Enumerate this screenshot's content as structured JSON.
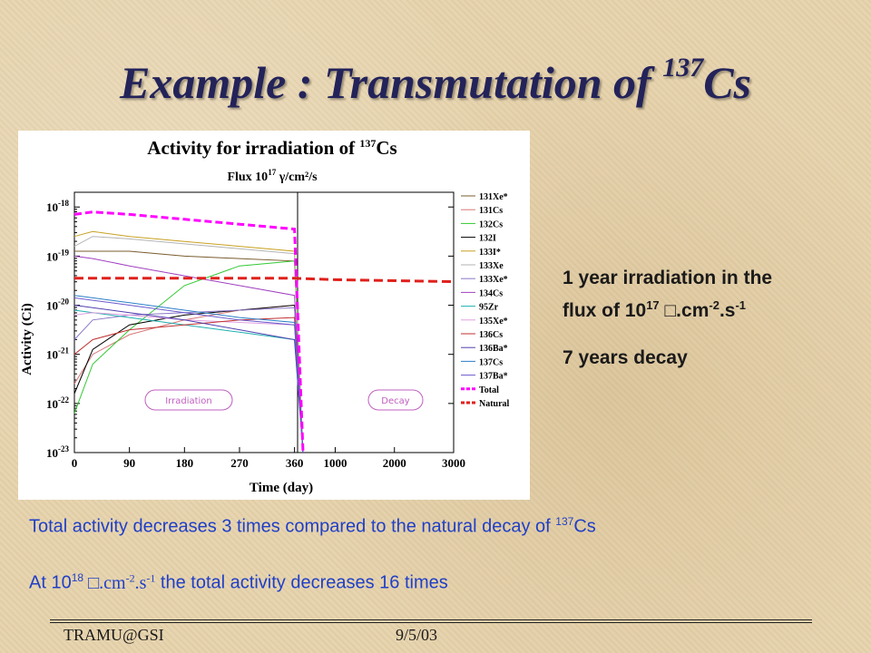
{
  "slide": {
    "title_main": "Example : Transmutation of ",
    "title_sup": "137",
    "title_end": "Cs"
  },
  "info": {
    "line1": "1 year irradiation in the",
    "line2_pre": "flux of 10",
    "line2_sup1": "17",
    "line2_mid": " □.cm",
    "line2_sup2": "-2",
    "line2_dot": ".s",
    "line2_sup3": "-1",
    "line3": "7 years decay"
  },
  "notes": {
    "n1_pre": "Total activity decreases 3 times compared to the natural decay of ",
    "n1_sup": "137",
    "n1_post": "Cs",
    "n2_pre": "At 10",
    "n2_sup1": "18",
    "n2_flux": " □.cm",
    "n2_sup2": "-2",
    "n2_s": ".s",
    "n2_sup3": "-1",
    "n2_post": "  the total activity decreases  16 times"
  },
  "footer": {
    "left": "TRAMU@GSI",
    "right": "9/5/03"
  },
  "chart_data": {
    "type": "line",
    "title_pre": "Activity for irradiation of ",
    "title_sup": "137",
    "title_post": "Cs",
    "subtitle": "Flux 10",
    "subtitle_sup": "17",
    "subtitle_post": " γ/cm²/s",
    "xlabel": "Time (day)",
    "ylabel": "Activity (Ci)",
    "y_scale": "log",
    "ylim_exp": [
      -23,
      -17.7
    ],
    "y_ticks": [
      {
        "exp": -18,
        "label": "10",
        "sup": "-18"
      },
      {
        "exp": -19,
        "label": "10",
        "sup": "-19"
      },
      {
        "exp": -20,
        "label": "10",
        "sup": "-20"
      },
      {
        "exp": -21,
        "label": "10",
        "sup": "-21"
      },
      {
        "exp": -22,
        "label": "10",
        "sup": "-22"
      },
      {
        "exp": -23,
        "label": "10",
        "sup": "-23"
      }
    ],
    "x_ticks_irradiation": [
      "0",
      "90",
      "180",
      "270",
      "360"
    ],
    "x_ticks_decay": [
      "1000",
      "2000",
      "3000"
    ],
    "region_labels": [
      "Irradiation",
      "Decay"
    ],
    "x_segments": [
      {
        "from": 0,
        "to": 365,
        "unit": "day"
      },
      {
        "from": 365,
        "to": 3000,
        "unit": "day"
      }
    ],
    "series": [
      {
        "name": "131Xe*",
        "color": "#7a5c2e",
        "x": [
          0,
          30,
          90,
          180,
          270,
          360
        ],
        "y_exp": [
          -18.9,
          -18.9,
          -18.9,
          -19.0,
          -19.05,
          -19.1
        ]
      },
      {
        "name": "131Cs",
        "color": "#d87878",
        "x": [
          0,
          30,
          90,
          180,
          270,
          360
        ],
        "y_exp": [
          -21.6,
          -21.0,
          -20.6,
          -20.3,
          -20.1,
          -20.0
        ]
      },
      {
        "name": "132Cs",
        "color": "#32c832",
        "x": [
          0,
          30,
          90,
          180,
          270,
          360
        ],
        "y_exp": [
          -22.2,
          -21.2,
          -20.5,
          -19.6,
          -19.2,
          -19.1
        ]
      },
      {
        "name": "132I",
        "color": "#000000",
        "x": [
          0,
          30,
          90,
          180,
          270,
          360
        ],
        "y_exp": [
          -21.8,
          -20.9,
          -20.4,
          -20.2,
          -20.1,
          -20.0
        ]
      },
      {
        "name": "133I*",
        "color": "#c8a020",
        "x": [
          0,
          30,
          90,
          180,
          270,
          360
        ],
        "y_exp": [
          -18.6,
          -18.5,
          -18.6,
          -18.7,
          -18.8,
          -18.9
        ]
      },
      {
        "name": "133Xe",
        "color": "#b3b3b3",
        "x": [
          0,
          30,
          90,
          180,
          270,
          360
        ],
        "y_exp": [
          -18.8,
          -18.6,
          -18.65,
          -18.75,
          -18.85,
          -18.95
        ]
      },
      {
        "name": "133Xe*",
        "color": "#8c78c8",
        "x": [
          0,
          30,
          90,
          180,
          270,
          360
        ],
        "y_exp": [
          -20.7,
          -20.3,
          -20.2,
          -20.15,
          -20.1,
          -20.05
        ]
      },
      {
        "name": "134Cs",
        "color": "#a040c0",
        "x": [
          0,
          30,
          90,
          180,
          270,
          360
        ],
        "y_exp": [
          -19.0,
          -19.05,
          -19.2,
          -19.4,
          -19.6,
          -19.8
        ]
      },
      {
        "name": "95Zr",
        "color": "#20b0b0",
        "x": [
          0,
          30,
          90,
          180,
          270,
          360
        ],
        "y_exp": [
          -20.1,
          -20.15,
          -20.25,
          -20.4,
          -20.55,
          -20.7
        ]
      },
      {
        "name": "135Xe*",
        "color": "#e0a0e0",
        "x": [
          0,
          30,
          90,
          180,
          270,
          360
        ],
        "y_exp": [
          -20.2,
          -20.15,
          -20.2,
          -20.3,
          -20.35,
          -20.4
        ]
      },
      {
        "name": "136Cs",
        "color": "#c03030",
        "x": [
          0,
          30,
          90,
          180,
          270,
          360
        ],
        "y_exp": [
          -21.0,
          -20.7,
          -20.5,
          -20.4,
          -20.3,
          -20.25
        ]
      },
      {
        "name": "136Ba*",
        "color": "#5040b0",
        "x": [
          0,
          30,
          90,
          180,
          270,
          360
        ],
        "y_exp": [
          -20.0,
          -20.05,
          -20.15,
          -20.3,
          -20.5,
          -20.7
        ]
      },
      {
        "name": "137Cs",
        "color": "#2c7fc8",
        "x": [
          0,
          30,
          90,
          180,
          270,
          360
        ],
        "y_exp": [
          -19.8,
          -19.85,
          -19.95,
          -20.1,
          -20.25,
          -20.35
        ]
      },
      {
        "name": "137Ba*",
        "color": "#6a5acd",
        "x": [
          0,
          30,
          90,
          180,
          270,
          360
        ],
        "y_exp": [
          -19.85,
          -19.9,
          -20.0,
          -20.15,
          -20.3,
          -20.4
        ]
      },
      {
        "name": "Total",
        "color": "#ff00ff",
        "x": [
          0,
          30,
          90,
          180,
          270,
          360
        ],
        "y_exp": [
          -18.15,
          -18.1,
          -18.15,
          -18.25,
          -18.35,
          -18.45
        ]
      },
      {
        "name": "Natural",
        "color": "#e0201c",
        "x": [
          0,
          90,
          180,
          270,
          360,
          1000,
          2000,
          3000
        ],
        "y_exp": [
          -19.45,
          -19.45,
          -19.45,
          -19.45,
          -19.45,
          -19.48,
          -19.5,
          -19.52
        ]
      }
    ]
  }
}
